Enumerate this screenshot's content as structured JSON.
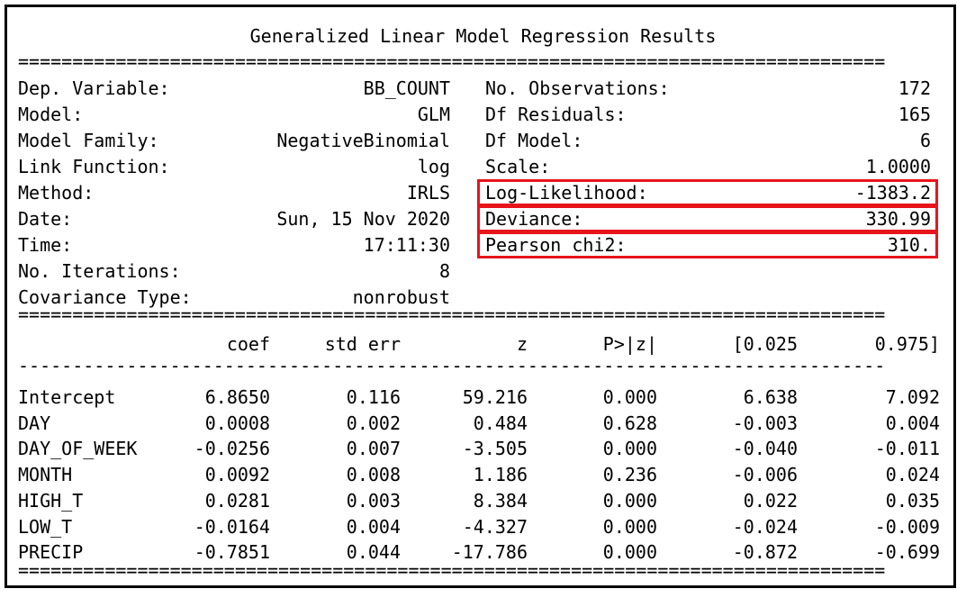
{
  "title": "Generalized Linear Model Regression Results",
  "rules": {
    "double": "================================================================================",
    "dash": "--------------------------------------------------------------------------------"
  },
  "info_left": [
    {
      "label": "Dep. Variable:",
      "value": "BB_COUNT"
    },
    {
      "label": "Model:",
      "value": "GLM"
    },
    {
      "label": "Model Family:",
      "value": "NegativeBinomial"
    },
    {
      "label": "Link Function:",
      "value": "log"
    },
    {
      "label": "Method:",
      "value": "IRLS"
    },
    {
      "label": "Date:",
      "value": "Sun, 15 Nov 2020"
    },
    {
      "label": "Time:",
      "value": "17:11:30"
    },
    {
      "label": "No. Iterations:",
      "value": "8"
    },
    {
      "label": "Covariance Type:",
      "value": "nonrobust"
    }
  ],
  "info_right": [
    {
      "label": "No. Observations:",
      "value": "172",
      "highlight": false
    },
    {
      "label": "Df Residuals:",
      "value": "165",
      "highlight": false
    },
    {
      "label": "Df Model:",
      "value": "6",
      "highlight": false
    },
    {
      "label": "Scale:",
      "value": "1.0000",
      "highlight": false
    },
    {
      "label": "Log-Likelihood:",
      "value": "-1383.2",
      "highlight": true
    },
    {
      "label": "Deviance:",
      "value": "330.99",
      "highlight": true
    },
    {
      "label": "Pearson chi2:",
      "value": "310.",
      "highlight": true
    }
  ],
  "coef_header": [
    "coef",
    "std err",
    "z",
    "P>|z|",
    "[0.025",
    "0.975]"
  ],
  "coef_rows": [
    {
      "name": "Intercept",
      "vals": [
        "6.8650",
        "0.116",
        "59.216",
        "0.000",
        "6.638",
        "7.092"
      ]
    },
    {
      "name": "DAY",
      "vals": [
        "0.0008",
        "0.002",
        "0.484",
        "0.628",
        "-0.003",
        "0.004"
      ]
    },
    {
      "name": "DAY_OF_WEEK",
      "vals": [
        "-0.0256",
        "0.007",
        "-3.505",
        "0.000",
        "-0.040",
        "-0.011"
      ]
    },
    {
      "name": "MONTH",
      "vals": [
        "0.0092",
        "0.008",
        "1.186",
        "0.236",
        "-0.006",
        "0.024"
      ]
    },
    {
      "name": "HIGH_T",
      "vals": [
        "0.0281",
        "0.003",
        "8.384",
        "0.000",
        "0.022",
        "0.035"
      ]
    },
    {
      "name": "LOW_T",
      "vals": [
        "-0.0164",
        "0.004",
        "-4.327",
        "0.000",
        "-0.024",
        "-0.009"
      ]
    },
    {
      "name": "PRECIP",
      "vals": [
        "-0.7851",
        "0.044",
        "-17.786",
        "0.000",
        "-0.872",
        "-0.699"
      ]
    }
  ],
  "highlight_color": "#e8141b"
}
